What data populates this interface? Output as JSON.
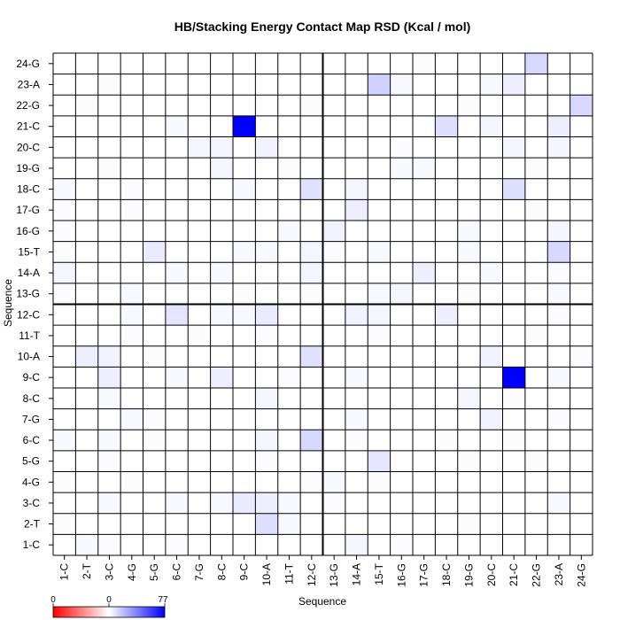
{
  "chart_data": {
    "type": "heatmap",
    "title": "HB/Stacking Energy Contact Map RSD (Kcal / mol)",
    "xlabel": "Sequence",
    "ylabel": "Sequence",
    "x_categories": [
      "1-C",
      "2-T",
      "3-C",
      "4-G",
      "5-G",
      "6-C",
      "7-G",
      "8-C",
      "9-C",
      "10-A",
      "11-T",
      "12-C",
      "13-G",
      "14-A",
      "15-T",
      "16-G",
      "17-G",
      "18-C",
      "19-G",
      "20-C",
      "21-C",
      "22-G",
      "23-A",
      "24-G"
    ],
    "y_categories": [
      "1-C",
      "2-T",
      "3-C",
      "4-G",
      "5-G",
      "6-C",
      "7-G",
      "8-C",
      "9-C",
      "10-A",
      "11-T",
      "12-C",
      "13-G",
      "14-A",
      "15-T",
      "16-G",
      "17-G",
      "18-C",
      "19-G",
      "20-C",
      "21-C",
      "22-G",
      "23-A",
      "24-G"
    ],
    "color_scale": {
      "min": 0,
      "mid": 0,
      "max": 77,
      "tick_labels": [
        "0",
        "0",
        "77"
      ],
      "low_color": "#ff0000",
      "mid_color": "#ffffff",
      "high_color": "#0000ff"
    },
    "grid": true,
    "divider_after_index": 11,
    "cells": [
      {
        "x": 1,
        "y": 0,
        "v": 2
      },
      {
        "x": 2,
        "y": 0,
        "v": 1
      },
      {
        "x": 5,
        "y": 0,
        "v": 1
      },
      {
        "x": 13,
        "y": 0,
        "v": 3
      },
      {
        "x": 15,
        "y": 0,
        "v": 1
      },
      {
        "x": 9,
        "y": 1,
        "v": 10
      },
      {
        "x": 10,
        "y": 1,
        "v": 2
      },
      {
        "x": 0,
        "y": 1,
        "v": 1
      },
      {
        "x": 18,
        "y": 1,
        "v": 1
      },
      {
        "x": 2,
        "y": 2,
        "v": 2
      },
      {
        "x": 5,
        "y": 2,
        "v": 2
      },
      {
        "x": 7,
        "y": 2,
        "v": 2
      },
      {
        "x": 8,
        "y": 2,
        "v": 6
      },
      {
        "x": 9,
        "y": 2,
        "v": 5
      },
      {
        "x": 10,
        "y": 2,
        "v": 2
      },
      {
        "x": 12,
        "y": 2,
        "v": 1
      },
      {
        "x": 22,
        "y": 2,
        "v": 2
      },
      {
        "x": 0,
        "y": 3,
        "v": 1
      },
      {
        "x": 3,
        "y": 3,
        "v": 1
      },
      {
        "x": 11,
        "y": 3,
        "v": 1
      },
      {
        "x": 12,
        "y": 3,
        "v": 2
      },
      {
        "x": 14,
        "y": 3,
        "v": 1
      },
      {
        "x": 2,
        "y": 4,
        "v": 1
      },
      {
        "x": 9,
        "y": 4,
        "v": 1
      },
      {
        "x": 14,
        "y": 4,
        "v": 8
      },
      {
        "x": 18,
        "y": 4,
        "v": 1
      },
      {
        "x": 21,
        "y": 4,
        "v": 1
      },
      {
        "x": 0,
        "y": 5,
        "v": 2
      },
      {
        "x": 2,
        "y": 5,
        "v": 2
      },
      {
        "x": 4,
        "y": 5,
        "v": 1
      },
      {
        "x": 9,
        "y": 5,
        "v": 3
      },
      {
        "x": 11,
        "y": 5,
        "v": 12
      },
      {
        "x": 13,
        "y": 5,
        "v": 1
      },
      {
        "x": 17,
        "y": 5,
        "v": 1
      },
      {
        "x": 20,
        "y": 5,
        "v": 1
      },
      {
        "x": 3,
        "y": 6,
        "v": 2
      },
      {
        "x": 4,
        "y": 6,
        "v": 1
      },
      {
        "x": 13,
        "y": 6,
        "v": 2
      },
      {
        "x": 19,
        "y": 6,
        "v": 4
      },
      {
        "x": 22,
        "y": 6,
        "v": 1
      },
      {
        "x": 2,
        "y": 7,
        "v": 2
      },
      {
        "x": 9,
        "y": 7,
        "v": 3
      },
      {
        "x": 18,
        "y": 7,
        "v": 3
      },
      {
        "x": 20,
        "y": 7,
        "v": 1
      },
      {
        "x": 2,
        "y": 8,
        "v": 5
      },
      {
        "x": 5,
        "y": 8,
        "v": 2
      },
      {
        "x": 7,
        "y": 8,
        "v": 5
      },
      {
        "x": 10,
        "y": 8,
        "v": 1
      },
      {
        "x": 13,
        "y": 8,
        "v": 2
      },
      {
        "x": 20,
        "y": 8,
        "v": 77
      },
      {
        "x": 22,
        "y": 8,
        "v": 2
      },
      {
        "x": 1,
        "y": 9,
        "v": 5
      },
      {
        "x": 2,
        "y": 9,
        "v": 4
      },
      {
        "x": 4,
        "y": 9,
        "v": 1
      },
      {
        "x": 11,
        "y": 9,
        "v": 9
      },
      {
        "x": 19,
        "y": 9,
        "v": 4
      },
      {
        "x": 23,
        "y": 9,
        "v": 1
      },
      {
        "x": 3,
        "y": 10,
        "v": 1
      },
      {
        "x": 6,
        "y": 10,
        "v": 1
      },
      {
        "x": 9,
        "y": 10,
        "v": 1
      },
      {
        "x": 14,
        "y": 10,
        "v": 1
      },
      {
        "x": 21,
        "y": 10,
        "v": 1
      },
      {
        "x": 3,
        "y": 11,
        "v": 2
      },
      {
        "x": 5,
        "y": 11,
        "v": 8
      },
      {
        "x": 7,
        "y": 11,
        "v": 2
      },
      {
        "x": 8,
        "y": 11,
        "v": 2
      },
      {
        "x": 9,
        "y": 11,
        "v": 6
      },
      {
        "x": 13,
        "y": 11,
        "v": 4
      },
      {
        "x": 14,
        "y": 11,
        "v": 3
      },
      {
        "x": 17,
        "y": 11,
        "v": 5
      },
      {
        "x": 22,
        "y": 11,
        "v": 1
      },
      {
        "x": 0,
        "y": 12,
        "v": 1
      },
      {
        "x": 3,
        "y": 12,
        "v": 2
      },
      {
        "x": 8,
        "y": 12,
        "v": 1
      },
      {
        "x": 11,
        "y": 12,
        "v": 1
      },
      {
        "x": 14,
        "y": 12,
        "v": 2
      },
      {
        "x": 15,
        "y": 12,
        "v": 3
      },
      {
        "x": 18,
        "y": 12,
        "v": 1
      },
      {
        "x": 22,
        "y": 12,
        "v": 2
      },
      {
        "x": 0,
        "y": 13,
        "v": 3
      },
      {
        "x": 5,
        "y": 13,
        "v": 2
      },
      {
        "x": 7,
        "y": 13,
        "v": 2
      },
      {
        "x": 11,
        "y": 13,
        "v": 3
      },
      {
        "x": 16,
        "y": 13,
        "v": 5
      },
      {
        "x": 19,
        "y": 13,
        "v": 2
      },
      {
        "x": 22,
        "y": 13,
        "v": 1
      },
      {
        "x": 0,
        "y": 14,
        "v": 1
      },
      {
        "x": 4,
        "y": 14,
        "v": 6
      },
      {
        "x": 8,
        "y": 14,
        "v": 2
      },
      {
        "x": 9,
        "y": 14,
        "v": 2
      },
      {
        "x": 11,
        "y": 14,
        "v": 3
      },
      {
        "x": 12,
        "y": 14,
        "v": 1
      },
      {
        "x": 14,
        "y": 14,
        "v": 2
      },
      {
        "x": 18,
        "y": 14,
        "v": 2
      },
      {
        "x": 22,
        "y": 14,
        "v": 12
      },
      {
        "x": 0,
        "y": 15,
        "v": 1
      },
      {
        "x": 10,
        "y": 15,
        "v": 2
      },
      {
        "x": 12,
        "y": 15,
        "v": 4
      },
      {
        "x": 18,
        "y": 15,
        "v": 2
      },
      {
        "x": 22,
        "y": 15,
        "v": 3
      },
      {
        "x": 0,
        "y": 16,
        "v": 1
      },
      {
        "x": 3,
        "y": 16,
        "v": 1
      },
      {
        "x": 13,
        "y": 16,
        "v": 5
      },
      {
        "x": 21,
        "y": 16,
        "v": 1
      },
      {
        "x": 0,
        "y": 17,
        "v": 2
      },
      {
        "x": 3,
        "y": 17,
        "v": 1
      },
      {
        "x": 8,
        "y": 17,
        "v": 2
      },
      {
        "x": 11,
        "y": 17,
        "v": 9
      },
      {
        "x": 13,
        "y": 17,
        "v": 3
      },
      {
        "x": 20,
        "y": 17,
        "v": 10
      },
      {
        "x": 2,
        "y": 18,
        "v": 1
      },
      {
        "x": 7,
        "y": 18,
        "v": 3
      },
      {
        "x": 10,
        "y": 18,
        "v": 1
      },
      {
        "x": 15,
        "y": 18,
        "v": 2
      },
      {
        "x": 16,
        "y": 18,
        "v": 2
      },
      {
        "x": 21,
        "y": 18,
        "v": 1
      },
      {
        "x": 6,
        "y": 19,
        "v": 3
      },
      {
        "x": 7,
        "y": 19,
        "v": 3
      },
      {
        "x": 9,
        "y": 19,
        "v": 4
      },
      {
        "x": 15,
        "y": 19,
        "v": 1
      },
      {
        "x": 20,
        "y": 19,
        "v": 3
      },
      {
        "x": 22,
        "y": 19,
        "v": 3
      },
      {
        "x": 5,
        "y": 20,
        "v": 2
      },
      {
        "x": 8,
        "y": 20,
        "v": 77
      },
      {
        "x": 17,
        "y": 20,
        "v": 10
      },
      {
        "x": 19,
        "y": 20,
        "v": 3
      },
      {
        "x": 22,
        "y": 20,
        "v": 5
      },
      {
        "x": 1,
        "y": 21,
        "v": 1
      },
      {
        "x": 11,
        "y": 21,
        "v": 1
      },
      {
        "x": 18,
        "y": 21,
        "v": 1
      },
      {
        "x": 23,
        "y": 21,
        "v": 12
      },
      {
        "x": 2,
        "y": 22,
        "v": 1
      },
      {
        "x": 14,
        "y": 22,
        "v": 14
      },
      {
        "x": 15,
        "y": 22,
        "v": 2
      },
      {
        "x": 19,
        "y": 22,
        "v": 2
      },
      {
        "x": 20,
        "y": 22,
        "v": 5
      },
      {
        "x": 16,
        "y": 23,
        "v": 1
      },
      {
        "x": 21,
        "y": 23,
        "v": 12
      }
    ]
  }
}
